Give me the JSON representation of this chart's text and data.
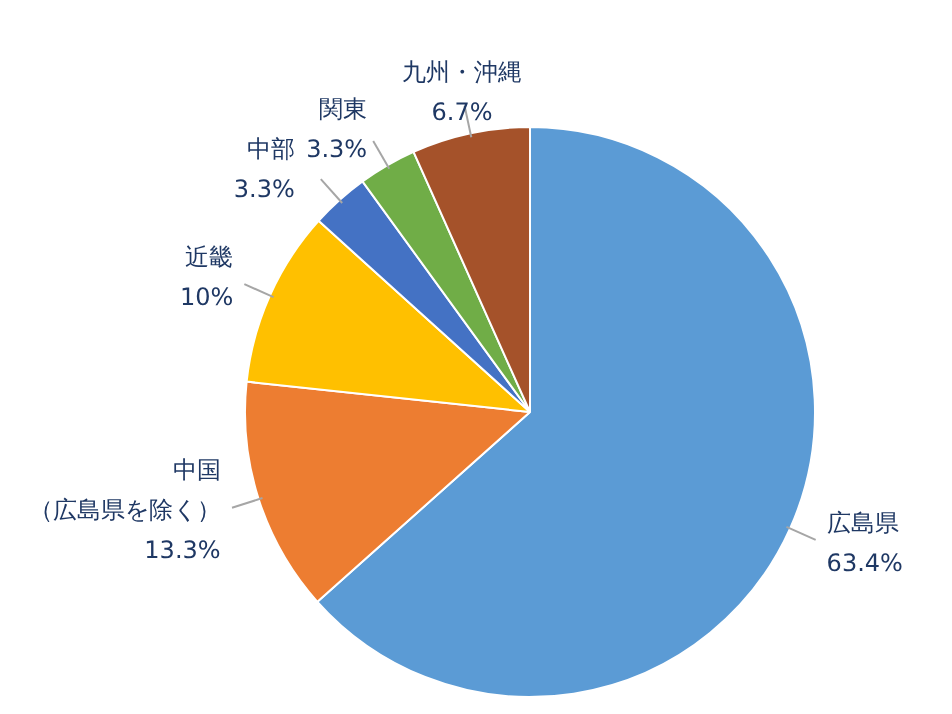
{
  "chart_data": {
    "type": "pie",
    "categories": [
      "広島県",
      "中国（広島県を除く）",
      "近畿",
      "中部",
      "関東",
      "九州・沖縄"
    ],
    "values": [
      63.4,
      13.3,
      10,
      3.3,
      3.3,
      6.7
    ],
    "colors": [
      "#5b9bd5",
      "#ed7d31",
      "#ffc000",
      "#4472c4",
      "#70ad47",
      "#a5522a"
    ],
    "value_labels": [
      "63.4%",
      "13.3%",
      "10%",
      "3.3%",
      "3.3%",
      "6.7%"
    ],
    "legend": false
  }
}
